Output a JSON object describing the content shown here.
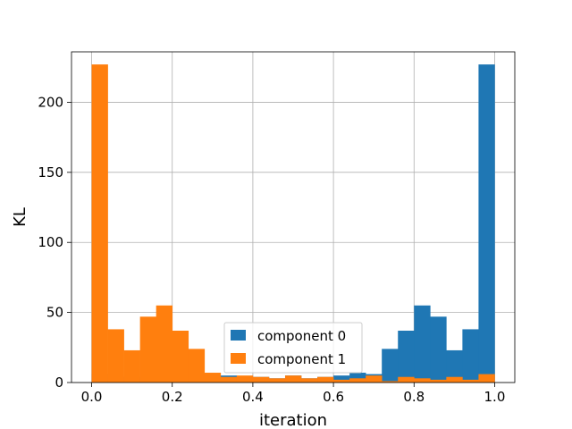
{
  "chart_data": {
    "type": "bar",
    "title": "",
    "xlabel": "iteration",
    "ylabel": "KL",
    "xlim": [
      -0.05,
      1.05
    ],
    "ylim": [
      0,
      236
    ],
    "grid": true,
    "legend_position": "lower center",
    "bin_edges": [
      0.0,
      0.04,
      0.08,
      0.12,
      0.16,
      0.2,
      0.24,
      0.28,
      0.32,
      0.36,
      0.4,
      0.44,
      0.48,
      0.52,
      0.56,
      0.6,
      0.64,
      0.68,
      0.72,
      0.76,
      0.8,
      0.84,
      0.88,
      0.92,
      0.96,
      1.0
    ],
    "x_ticks": [
      0.0,
      0.2,
      0.4,
      0.6,
      0.8,
      1.0
    ],
    "x_tick_labels": [
      "0.0",
      "0.2",
      "0.4",
      "0.6",
      "0.8",
      "1.0"
    ],
    "y_ticks": [
      0,
      50,
      100,
      150,
      200
    ],
    "y_tick_labels": [
      "0",
      "50",
      "100",
      "150",
      "200"
    ],
    "series": [
      {
        "name": "component 0",
        "color": "#1f77b4",
        "values": [
          6,
          2,
          4,
          3,
          1,
          4,
          2,
          3,
          5,
          2,
          4,
          3,
          5,
          3,
          4,
          5,
          7,
          6,
          24,
          37,
          55,
          47,
          23,
          38,
          227
        ]
      },
      {
        "name": "component 1",
        "color": "#ff7f0e",
        "values": [
          227,
          38,
          23,
          47,
          55,
          37,
          24,
          7,
          4,
          5,
          4,
          3,
          5,
          3,
          4,
          2,
          3,
          5,
          1,
          4,
          3,
          2,
          4,
          2,
          6
        ]
      }
    ]
  }
}
